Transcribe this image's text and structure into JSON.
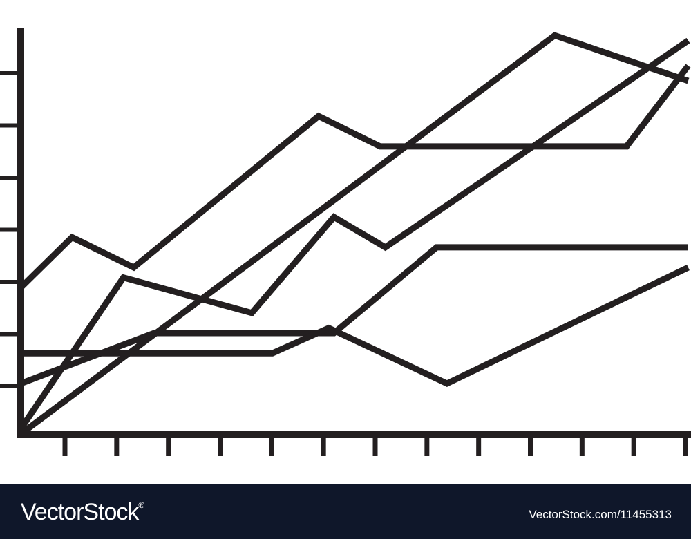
{
  "chart_data": {
    "type": "line",
    "title": "",
    "xlabel": "",
    "ylabel": "",
    "x": [
      0,
      1,
      2,
      3,
      4,
      5,
      6,
      7,
      8,
      9,
      10,
      11,
      12,
      13
    ],
    "xlim": [
      0,
      13
    ],
    "ylim": [
      0,
      8
    ],
    "x_tick_count": 13,
    "y_tick_count": 7,
    "grid": false,
    "legend": "none",
    "color": "#231f20",
    "series": [
      {
        "x": [
          0,
          1,
          2.2,
          5.8,
          7,
          11.8,
          13
        ],
        "y": [
          2.9,
          3.9,
          3.3,
          6.3,
          5.7,
          5.7,
          7.3
        ]
      },
      {
        "x": [
          0,
          10.4,
          13
        ],
        "y": [
          0,
          7.9,
          7.0
        ]
      },
      {
        "x": [
          0,
          2.0,
          4.5,
          6.1,
          7.1,
          13
        ],
        "y": [
          0.1,
          3.1,
          2.4,
          4.3,
          3.7,
          7.8
        ]
      },
      {
        "x": [
          0,
          2.6,
          6.1,
          8.1,
          13
        ],
        "y": [
          1.0,
          2.0,
          2.0,
          3.7,
          3.7
        ]
      },
      {
        "x": [
          0,
          4.9,
          6.0,
          8.3,
          13
        ],
        "y": [
          1.6,
          1.6,
          2.1,
          1.0,
          3.3
        ]
      }
    ]
  },
  "footer": {
    "logo_text": "VectorStock",
    "logo_mark": "®",
    "image_id": "VectorStock.com/11455313"
  }
}
